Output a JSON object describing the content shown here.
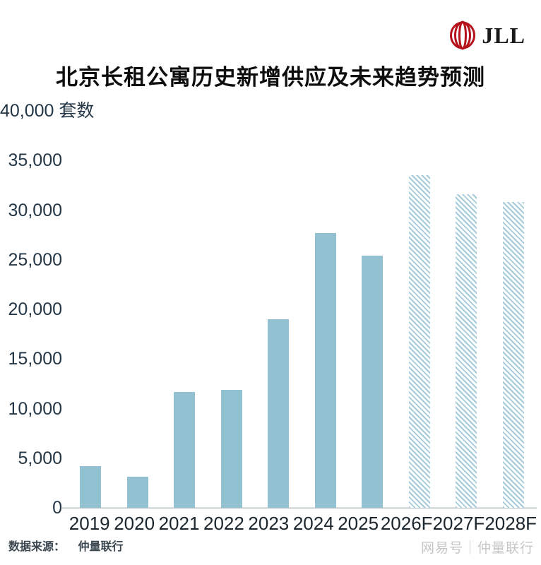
{
  "logo": {
    "text": "JLL",
    "mark_color": "#b5121b"
  },
  "header": {
    "title": "北京长租公寓历史新增供应及未来趋势预测"
  },
  "chart_data": {
    "type": "bar",
    "title": "北京长租公寓历史新增供应及未来趋势预测",
    "unit_label": "套数",
    "categories": [
      "2019",
      "2020",
      "2021",
      "2022",
      "2023",
      "2024",
      "2025",
      "2026F",
      "2027F",
      "2028F"
    ],
    "values": [
      4200,
      3100,
      11700,
      11900,
      19000,
      27700,
      25400,
      33500,
      31600,
      30800
    ],
    "forecast": [
      false,
      false,
      false,
      false,
      false,
      false,
      false,
      true,
      true,
      true
    ],
    "ylim": [
      0,
      40000
    ],
    "yticks": [
      0,
      5000,
      10000,
      15000,
      20000,
      25000,
      30000,
      35000,
      40000
    ],
    "grid": false,
    "legend": "none",
    "bar_color": "#92c1d2",
    "forecast_hatch_color": "#a4cbd9",
    "axis_text_color": "#253746"
  },
  "footer": {
    "source_label": "数据来源：",
    "source_value": "仲量联行",
    "watermark": "网易号｜仲量联行"
  }
}
